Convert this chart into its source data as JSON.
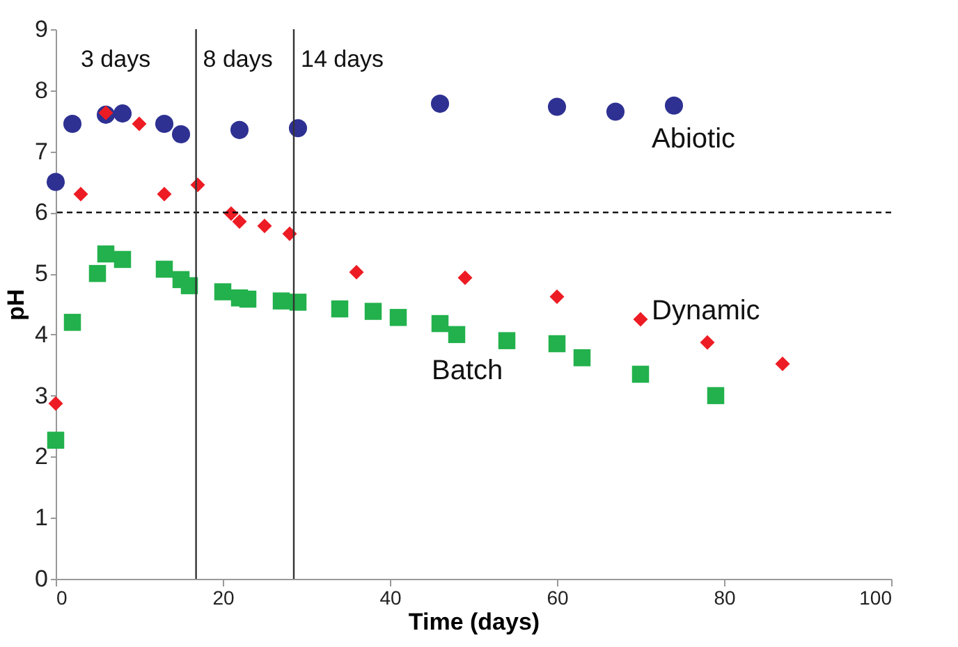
{
  "chart_data": {
    "type": "scatter",
    "xlabel": "Time (days)",
    "ylabel": "pH",
    "xlim": [
      0,
      100
    ],
    "xticks": [
      0,
      20,
      40,
      60,
      80,
      100
    ],
    "ylim": [
      0,
      9
    ],
    "yticks": [
      0,
      1,
      2,
      3,
      4,
      5,
      6,
      7,
      8,
      9
    ],
    "grid": false,
    "legend": false,
    "series": [
      {
        "name": "Abiotic",
        "color": "#2e3192",
        "marker": "circle",
        "x": [
          0,
          2,
          6,
          8,
          13,
          15,
          22,
          29,
          46,
          60,
          67,
          74
        ],
        "values": [
          6.5,
          7.45,
          7.6,
          7.62,
          7.45,
          7.28,
          7.35,
          7.38,
          7.78,
          7.73,
          7.65,
          7.75
        ]
      },
      {
        "name": "Dynamic",
        "color": "#ed1c24",
        "marker": "diamond",
        "x": [
          0,
          3,
          6,
          10,
          13,
          17,
          21,
          22,
          25,
          28,
          36,
          49,
          60,
          70,
          78,
          87
        ],
        "values": [
          2.87,
          6.3,
          7.63,
          7.45,
          6.3,
          6.45,
          5.98,
          5.85,
          5.78,
          5.65,
          5.02,
          4.93,
          4.62,
          4.25,
          3.87,
          3.52
        ]
      },
      {
        "name": "Batch",
        "color": "#22b14c",
        "marker": "square",
        "x": [
          0,
          2,
          5,
          6,
          8,
          13,
          15,
          16,
          20,
          22,
          23,
          27,
          29,
          34,
          38,
          41,
          46,
          48,
          54,
          60,
          63,
          70,
          79
        ],
        "values": [
          2.27,
          4.2,
          5.0,
          5.32,
          5.23,
          5.07,
          4.9,
          4.8,
          4.7,
          4.6,
          4.58,
          4.55,
          4.53,
          4.42,
          4.38,
          4.28,
          4.18,
          4.0,
          3.9,
          3.85,
          3.62,
          3.35,
          3.0
        ]
      }
    ],
    "ref_lines": [
      {
        "axis": "y",
        "value": 6,
        "color": "#000000",
        "line_style": "dashed"
      },
      {
        "axis": "x",
        "value": 16.8,
        "color": "#333333",
        "line_style": "solid"
      },
      {
        "axis": "x",
        "value": 28.5,
        "color": "#333333",
        "line_style": "solid"
      }
    ],
    "annotations": [
      "3 days",
      "8 days",
      "14 days"
    ]
  }
}
